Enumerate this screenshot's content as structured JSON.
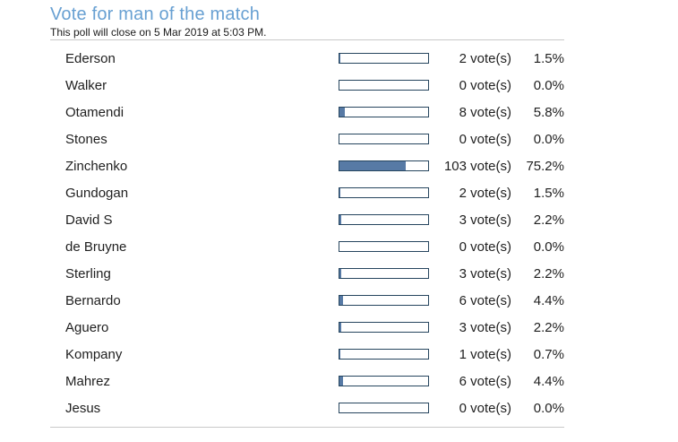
{
  "poll": {
    "title": "Vote for man of the match",
    "subtitle": "This poll will close on 5 Mar 2019 at 5:03 PM.",
    "options": [
      {
        "name": "Ederson",
        "votes_label": "2 vote(s)",
        "percent_label": "1.5%",
        "percent": 1.5
      },
      {
        "name": "Walker",
        "votes_label": "0 vote(s)",
        "percent_label": "0.0%",
        "percent": 0.0
      },
      {
        "name": "Otamendi",
        "votes_label": "8 vote(s)",
        "percent_label": "5.8%",
        "percent": 5.8
      },
      {
        "name": "Stones",
        "votes_label": "0 vote(s)",
        "percent_label": "0.0%",
        "percent": 0.0
      },
      {
        "name": "Zinchenko",
        "votes_label": "103 vote(s)",
        "percent_label": "75.2%",
        "percent": 75.2
      },
      {
        "name": "Gundogan",
        "votes_label": "2 vote(s)",
        "percent_label": "1.5%",
        "percent": 1.5
      },
      {
        "name": "David S",
        "votes_label": "3 vote(s)",
        "percent_label": "2.2%",
        "percent": 2.2
      },
      {
        "name": "de Bruyne",
        "votes_label": "0 vote(s)",
        "percent_label": "0.0%",
        "percent": 0.0
      },
      {
        "name": "Sterling",
        "votes_label": "3 vote(s)",
        "percent_label": "2.2%",
        "percent": 2.2
      },
      {
        "name": "Bernardo",
        "votes_label": "6 vote(s)",
        "percent_label": "4.4%",
        "percent": 4.4
      },
      {
        "name": "Aguero",
        "votes_label": "3 vote(s)",
        "percent_label": "2.2%",
        "percent": 2.2
      },
      {
        "name": "Kompany",
        "votes_label": "1 vote(s)",
        "percent_label": "0.7%",
        "percent": 0.7
      },
      {
        "name": "Mahrez",
        "votes_label": "6 vote(s)",
        "percent_label": "4.4%",
        "percent": 4.4
      },
      {
        "name": "Jesus",
        "votes_label": "0 vote(s)",
        "percent_label": "0.0%",
        "percent": 0.0
      }
    ]
  },
  "colors": {
    "title": "#68a0d2",
    "text": "#1f1f1f",
    "divider": "#c9c9c9",
    "bar_border": "#26455e",
    "bar_fill": "#577aa5",
    "bar_background": "#ffffff"
  }
}
